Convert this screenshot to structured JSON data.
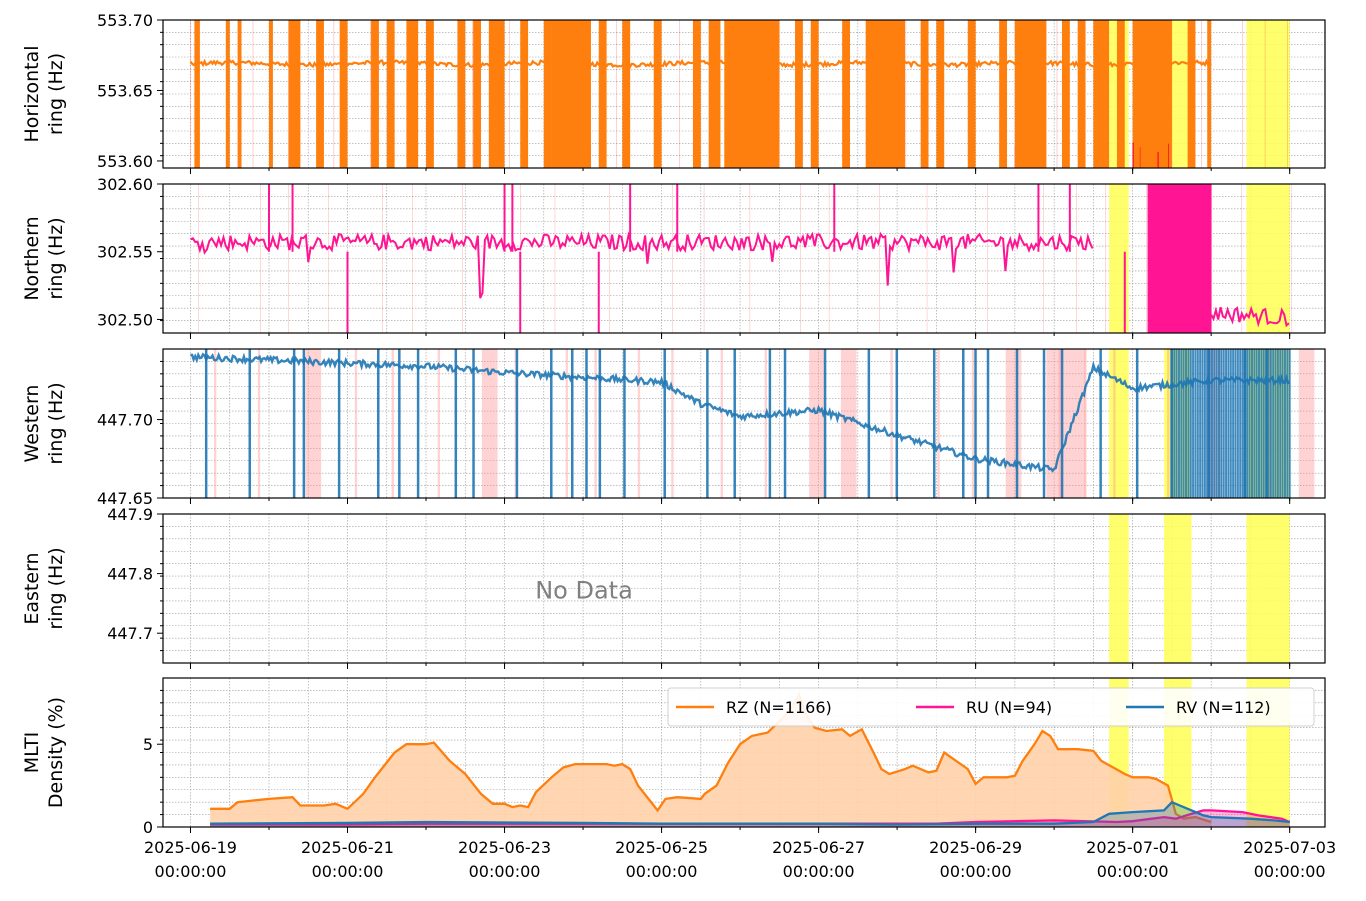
{
  "colors": {
    "rz": "#ff7f0e",
    "ru": "#ff1493",
    "rv": "#1f77b4",
    "highlight": "#ffff55",
    "flag_red": "#ff2020",
    "rz_fill": "#ffd2a8",
    "nodata": "#808080"
  },
  "chart_data": [
    {
      "type": "line",
      "name": "horizontal-ring",
      "ylabel": [
        "Horizontal",
        "ring (Hz)"
      ],
      "ylim": [
        553.595,
        553.7
      ],
      "yticks": [
        "553.70",
        "553.65",
        "553.60"
      ],
      "ytick_values": [
        553.7,
        553.65,
        553.6
      ],
      "series_name": "RZ",
      "color": "#ff7f0e",
      "baseline": 553.669,
      "noise": 0.0015,
      "x_range_days": [
        0,
        13
      ],
      "dropouts_days": [
        [
          0.05,
          0.12
        ],
        [
          0.45,
          0.5
        ],
        [
          0.6,
          0.65
        ],
        [
          1.0,
          1.05
        ],
        [
          1.25,
          1.4
        ],
        [
          1.6,
          1.7
        ],
        [
          1.9,
          2.0
        ],
        [
          2.3,
          2.4
        ],
        [
          2.5,
          2.6
        ],
        [
          2.75,
          2.9
        ],
        [
          3.0,
          3.1
        ],
        [
          3.4,
          3.5
        ],
        [
          3.6,
          3.7
        ],
        [
          3.8,
          4.0
        ],
        [
          4.2,
          4.3
        ],
        [
          4.5,
          4.6
        ],
        [
          4.6,
          5.1
        ],
        [
          5.2,
          5.3
        ],
        [
          5.5,
          5.6
        ],
        [
          5.9,
          6.0
        ],
        [
          6.4,
          6.5
        ],
        [
          6.6,
          6.75
        ],
        [
          6.8,
          7.5
        ],
        [
          7.7,
          7.8
        ],
        [
          7.9,
          8.0
        ],
        [
          8.3,
          8.4
        ],
        [
          8.6,
          8.7
        ],
        [
          8.7,
          9.1
        ],
        [
          9.3,
          9.4
        ],
        [
          9.5,
          9.6
        ],
        [
          9.9,
          10.0
        ],
        [
          10.3,
          10.4
        ],
        [
          10.5,
          10.9
        ],
        [
          11.1,
          11.2
        ],
        [
          11.3,
          11.4
        ],
        [
          11.5,
          11.7
        ],
        [
          11.8,
          11.9
        ],
        [
          12.1,
          12.2
        ],
        [
          12.35,
          12.45
        ],
        [
          12.7,
          12.8
        ],
        [
          12.95,
          13.0
        ]
      ],
      "heavy_blocks_days": [
        [
          4.6,
          5.1
        ],
        [
          6.8,
          7.5
        ],
        [
          8.7,
          9.1
        ],
        [
          10.5,
          10.9
        ],
        [
          12.0,
          12.5
        ]
      ]
    },
    {
      "type": "line",
      "name": "northern-ring",
      "ylabel": [
        "Northern",
        "ring (Hz)"
      ],
      "ylim": [
        302.49,
        302.6
      ],
      "yticks": [
        "302.60",
        "302.55",
        "302.50"
      ],
      "ytick_values": [
        302.6,
        302.55,
        302.5
      ],
      "series_name": "RU",
      "color": "#ff1493",
      "baseline": 302.557,
      "noise": 0.006,
      "x_range_days": [
        0,
        13
      ],
      "gap_days": [
        [
          11.5,
          12.05
        ]
      ],
      "dense_block_days": [
        [
          12.2,
          13.0
        ]
      ]
    },
    {
      "type": "line",
      "name": "western-ring",
      "ylabel": [
        "Western",
        "ring (Hz)"
      ],
      "ylim": [
        447.65,
        447.745
      ],
      "yticks": [
        "447.70",
        "447.65"
      ],
      "ytick_values": [
        447.7,
        447.65
      ],
      "series_name": "RV",
      "color": "#1f77b4",
      "x_range_days": [
        0,
        13
      ],
      "trend_points": [
        [
          0,
          447.74
        ],
        [
          1.5,
          447.737
        ],
        [
          3.0,
          447.734
        ],
        [
          4.0,
          447.73
        ],
        [
          5.0,
          447.727
        ],
        [
          6.0,
          447.724
        ],
        [
          6.5,
          447.71
        ],
        [
          7.0,
          447.702
        ],
        [
          8.0,
          447.706
        ],
        [
          9.0,
          447.69
        ],
        [
          10.0,
          447.675
        ],
        [
          11.0,
          447.668
        ],
        [
          11.5,
          447.733
        ],
        [
          12.0,
          447.72
        ],
        [
          13.0,
          447.725
        ]
      ]
    },
    {
      "type": "line",
      "name": "eastern-ring",
      "ylabel": [
        "Eastern",
        "ring (Hz)"
      ],
      "ylim": [
        447.65,
        447.9
      ],
      "yticks": [
        "447.9",
        "447.8",
        "447.7"
      ],
      "ytick_values": [
        447.9,
        447.8,
        447.7
      ],
      "no_data_text": "No Data"
    },
    {
      "type": "area",
      "name": "mlti-density",
      "ylabel": [
        "MLTI",
        "Density (%)"
      ],
      "ylim": [
        0,
        9
      ],
      "yticks": [
        "5",
        "0"
      ],
      "ytick_values": [
        5,
        0
      ],
      "series": [
        {
          "name": "RZ",
          "legend": "RZ (N=1166)",
          "color": "#ff7f0e",
          "points": [
            [
              0.25,
              1.1
            ],
            [
              0.5,
              1.1
            ],
            [
              0.6,
              1.5
            ],
            [
              0.8,
              1.6
            ],
            [
              1.0,
              1.7
            ],
            [
              1.3,
              1.8
            ],
            [
              1.4,
              1.3
            ],
            [
              1.7,
              1.3
            ],
            [
              1.85,
              1.4
            ],
            [
              2.0,
              1.1
            ],
            [
              2.2,
              2.0
            ],
            [
              2.35,
              3.0
            ],
            [
              2.5,
              3.9
            ],
            [
              2.6,
              4.5
            ],
            [
              2.75,
              5.0
            ],
            [
              3.0,
              5.0
            ],
            [
              3.1,
              5.1
            ],
            [
              3.3,
              4.0
            ],
            [
              3.5,
              3.2
            ],
            [
              3.7,
              2.0
            ],
            [
              3.85,
              1.4
            ],
            [
              4.0,
              1.4
            ],
            [
              4.1,
              1.2
            ],
            [
              4.2,
              1.3
            ],
            [
              4.3,
              1.2
            ],
            [
              4.4,
              2.1
            ],
            [
              4.6,
              3.0
            ],
            [
              4.75,
              3.6
            ],
            [
              4.9,
              3.8
            ],
            [
              5.3,
              3.8
            ],
            [
              5.4,
              3.7
            ],
            [
              5.5,
              3.8
            ],
            [
              5.6,
              3.5
            ],
            [
              5.7,
              2.5
            ],
            [
              5.85,
              1.6
            ],
            [
              5.95,
              1.0
            ],
            [
              6.05,
              1.7
            ],
            [
              6.2,
              1.8
            ],
            [
              6.5,
              1.7
            ],
            [
              6.55,
              2.0
            ],
            [
              6.7,
              2.5
            ],
            [
              6.85,
              3.9
            ],
            [
              7.0,
              5.0
            ],
            [
              7.15,
              5.5
            ],
            [
              7.35,
              5.7
            ],
            [
              7.55,
              6.6
            ],
            [
              7.7,
              7.5
            ],
            [
              7.75,
              8.0
            ],
            [
              7.85,
              6.7
            ],
            [
              7.95,
              6.0
            ],
            [
              8.1,
              5.8
            ],
            [
              8.3,
              5.9
            ],
            [
              8.4,
              5.5
            ],
            [
              8.55,
              5.9
            ],
            [
              8.7,
              4.5
            ],
            [
              8.8,
              3.5
            ],
            [
              8.9,
              3.2
            ],
            [
              9.1,
              3.5
            ],
            [
              9.2,
              3.7
            ],
            [
              9.4,
              3.3
            ],
            [
              9.5,
              3.4
            ],
            [
              9.6,
              4.5
            ],
            [
              9.75,
              4.0
            ],
            [
              9.9,
              3.5
            ],
            [
              10.0,
              2.6
            ],
            [
              10.1,
              3.0
            ],
            [
              10.4,
              3.0
            ],
            [
              10.5,
              3.1
            ],
            [
              10.6,
              4.0
            ],
            [
              10.75,
              5.0
            ],
            [
              10.85,
              5.8
            ],
            [
              10.95,
              5.5
            ],
            [
              11.05,
              4.7
            ],
            [
              11.3,
              4.7
            ],
            [
              11.5,
              4.6
            ],
            [
              11.6,
              4.0
            ],
            [
              11.75,
              3.6
            ],
            [
              11.9,
              3.2
            ],
            [
              12.0,
              3.0
            ],
            [
              12.2,
              3.0
            ],
            [
              12.3,
              2.9
            ],
            [
              12.45,
              2.5
            ],
            [
              12.55,
              0.8
            ],
            [
              12.65,
              0.5
            ],
            [
              12.8,
              0.6
            ],
            [
              13.0,
              0.3
            ]
          ]
        },
        {
          "name": "RU",
          "legend": "RU (N=94)",
          "color": "#ff1493",
          "points": [
            [
              0.25,
              0.15
            ],
            [
              2.0,
              0.15
            ],
            [
              3.0,
              0.2
            ],
            [
              6.0,
              0.2
            ],
            [
              8.0,
              0.2
            ],
            [
              9.5,
              0.2
            ],
            [
              10.0,
              0.3
            ],
            [
              11.0,
              0.4
            ],
            [
              11.8,
              0.3
            ],
            [
              12.0,
              0.35
            ],
            [
              12.4,
              0.6
            ],
            [
              12.55,
              0.5
            ],
            [
              12.75,
              0.8
            ],
            [
              12.9,
              1.0
            ],
            [
              13.0,
              1.0
            ],
            [
              13.4,
              0.9
            ],
            [
              13.6,
              0.7
            ],
            [
              13.9,
              0.5
            ],
            [
              14.0,
              0.3
            ]
          ]
        },
        {
          "name": "RV",
          "legend": "RV (N=112)",
          "color": "#1f77b4",
          "points": [
            [
              0.25,
              0.2
            ],
            [
              2.0,
              0.25
            ],
            [
              3.0,
              0.3
            ],
            [
              5.0,
              0.25
            ],
            [
              6.0,
              0.2
            ],
            [
              8.0,
              0.2
            ],
            [
              9.0,
              0.15
            ],
            [
              10.0,
              0.2
            ],
            [
              11.0,
              0.2
            ],
            [
              11.5,
              0.3
            ],
            [
              11.7,
              0.8
            ],
            [
              12.0,
              0.9
            ],
            [
              12.4,
              1.0
            ],
            [
              12.5,
              1.5
            ],
            [
              12.6,
              1.3
            ],
            [
              12.8,
              0.9
            ],
            [
              12.9,
              0.7
            ],
            [
              13.0,
              0.6
            ],
            [
              13.5,
              0.5
            ],
            [
              13.8,
              0.4
            ],
            [
              14.0,
              0.3
            ]
          ]
        }
      ]
    }
  ],
  "highlights_days": [
    [
      11.7,
      11.95
    ],
    [
      12.4,
      12.75
    ],
    [
      13.45,
      14.0
    ]
  ],
  "x_axis": {
    "range_days": [
      -0.35,
      14.45
    ],
    "major_tick_days": [
      0,
      2,
      4,
      6,
      8,
      10,
      12,
      14
    ],
    "labels": [
      [
        "2025-06-19",
        "00:00:00"
      ],
      [
        "2025-06-21",
        "00:00:00"
      ],
      [
        "2025-06-23",
        "00:00:00"
      ],
      [
        "2025-06-25",
        "00:00:00"
      ],
      [
        "2025-06-27",
        "00:00:00"
      ],
      [
        "2025-06-29",
        "00:00:00"
      ],
      [
        "2025-07-01",
        "00:00:00"
      ],
      [
        "2025-07-03",
        "00:00:00"
      ]
    ]
  },
  "legend_entries": [
    "RZ (N=1166)",
    "RU (N=94)",
    "RV (N=112)"
  ]
}
